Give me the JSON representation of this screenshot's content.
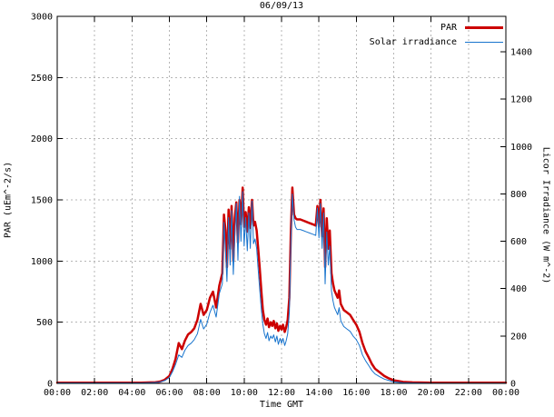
{
  "chart_data": {
    "type": "line",
    "title": "06/09/13",
    "xlabel": "Time GMT",
    "ylabel": "PAR (uEm^-2/s)",
    "y2label": "Licor Irradiance (W m^-2)",
    "xlim": [
      0,
      24
    ],
    "ylim": [
      0,
      3000
    ],
    "y2lim": [
      0,
      1550
    ],
    "grid": true,
    "legend_position": "top-right",
    "x_ticks": [
      0,
      2,
      4,
      6,
      8,
      10,
      12,
      14,
      16,
      18,
      20,
      22,
      24
    ],
    "x_tick_labels": [
      "00:00",
      "02:00",
      "04:00",
      "06:00",
      "08:00",
      "10:00",
      "12:00",
      "14:00",
      "16:00",
      "18:00",
      "20:00",
      "22:00",
      "00:00"
    ],
    "y_ticks": [
      0,
      500,
      1000,
      1500,
      2000,
      2500,
      3000
    ],
    "y2_ticks": [
      0,
      200,
      400,
      600,
      800,
      1000,
      1200,
      1400
    ],
    "x": [
      0,
      0.5,
      1,
      1.5,
      2,
      2.5,
      3,
      3.5,
      4,
      4.5,
      5,
      5.25,
      5.5,
      5.75,
      6,
      6.17,
      6.33,
      6.5,
      6.67,
      6.83,
      7,
      7.17,
      7.33,
      7.5,
      7.67,
      7.83,
      8,
      8.17,
      8.33,
      8.5,
      8.67,
      8.83,
      8.92,
      9,
      9.08,
      9.17,
      9.25,
      9.33,
      9.42,
      9.5,
      9.58,
      9.67,
      9.75,
      9.83,
      9.92,
      10,
      10.08,
      10.17,
      10.25,
      10.33,
      10.42,
      10.5,
      10.58,
      10.67,
      10.75,
      10.83,
      10.92,
      11,
      11.08,
      11.17,
      11.25,
      11.33,
      11.42,
      11.5,
      11.58,
      11.67,
      11.75,
      11.83,
      11.92,
      12,
      12.08,
      12.17,
      12.25,
      12.33,
      12.42,
      12.5,
      12.58,
      12.67,
      12.75,
      12.83,
      13,
      13.17,
      13.33,
      13.5,
      13.67,
      13.83,
      13.92,
      14,
      14.08,
      14.17,
      14.25,
      14.33,
      14.42,
      14.5,
      14.58,
      14.67,
      14.75,
      14.83,
      15,
      15.08,
      15.17,
      15.33,
      15.5,
      15.67,
      15.83,
      16,
      16.17,
      16.33,
      16.5,
      16.67,
      16.83,
      17,
      17.25,
      17.5,
      17.75,
      18,
      18.5,
      19,
      20,
      21,
      22,
      23,
      24
    ],
    "series": [
      {
        "name": "PAR",
        "axis": "y1",
        "color": "#cc0000",
        "line_width": 2.5,
        "values": [
          5,
          5,
          5,
          5,
          5,
          5,
          5,
          5,
          5,
          5,
          8,
          10,
          15,
          30,
          60,
          120,
          200,
          330,
          280,
          350,
          400,
          420,
          450,
          520,
          650,
          560,
          600,
          700,
          750,
          620,
          800,
          900,
          1380,
          1250,
          950,
          1420,
          1100,
          1450,
          1000,
          1350,
          1480,
          1150,
          1500,
          1300,
          1600,
          1280,
          1400,
          1240,
          1440,
          1270,
          1500,
          1290,
          1320,
          1250,
          1100,
          950,
          750,
          600,
          520,
          480,
          530,
          460,
          500,
          470,
          510,
          450,
          490,
          430,
          470,
          440,
          480,
          420,
          460,
          520,
          700,
          1250,
          1600,
          1380,
          1350,
          1340,
          1340,
          1330,
          1320,
          1310,
          1300,
          1290,
          1450,
          1280,
          1500,
          1200,
          1430,
          950,
          1350,
          1100,
          1250,
          900,
          820,
          760,
          700,
          760,
          650,
          600,
          580,
          560,
          520,
          480,
          420,
          330,
          260,
          210,
          160,
          120,
          90,
          60,
          40,
          25,
          12,
          8,
          5,
          5,
          5,
          5,
          5
        ]
      },
      {
        "name": "Solar irradiance",
        "axis": "y2",
        "color": "#1874cd",
        "line_width": 1,
        "values": [
          2,
          2,
          2,
          2,
          2,
          2,
          2,
          2,
          2,
          2,
          3,
          4,
          6,
          12,
          25,
          50,
          80,
          120,
          110,
          140,
          160,
          170,
          185,
          210,
          270,
          230,
          250,
          300,
          330,
          280,
          380,
          420,
          680,
          560,
          430,
          700,
          500,
          730,
          460,
          620,
          760,
          520,
          790,
          600,
          810,
          580,
          700,
          560,
          720,
          570,
          770,
          590,
          610,
          570,
          480,
          400,
          310,
          250,
          210,
          190,
          215,
          180,
          200,
          190,
          205,
          175,
          200,
          165,
          190,
          170,
          190,
          160,
          180,
          210,
          300,
          600,
          800,
          690,
          660,
          650,
          650,
          645,
          640,
          635,
          630,
          625,
          740,
          615,
          760,
          570,
          720,
          420,
          640,
          500,
          580,
          390,
          350,
          320,
          290,
          320,
          265,
          240,
          230,
          220,
          200,
          185,
          160,
          120,
          95,
          75,
          55,
          40,
          28,
          18,
          12,
          6,
          3,
          2,
          1,
          1,
          1,
          1,
          1
        ]
      }
    ]
  }
}
